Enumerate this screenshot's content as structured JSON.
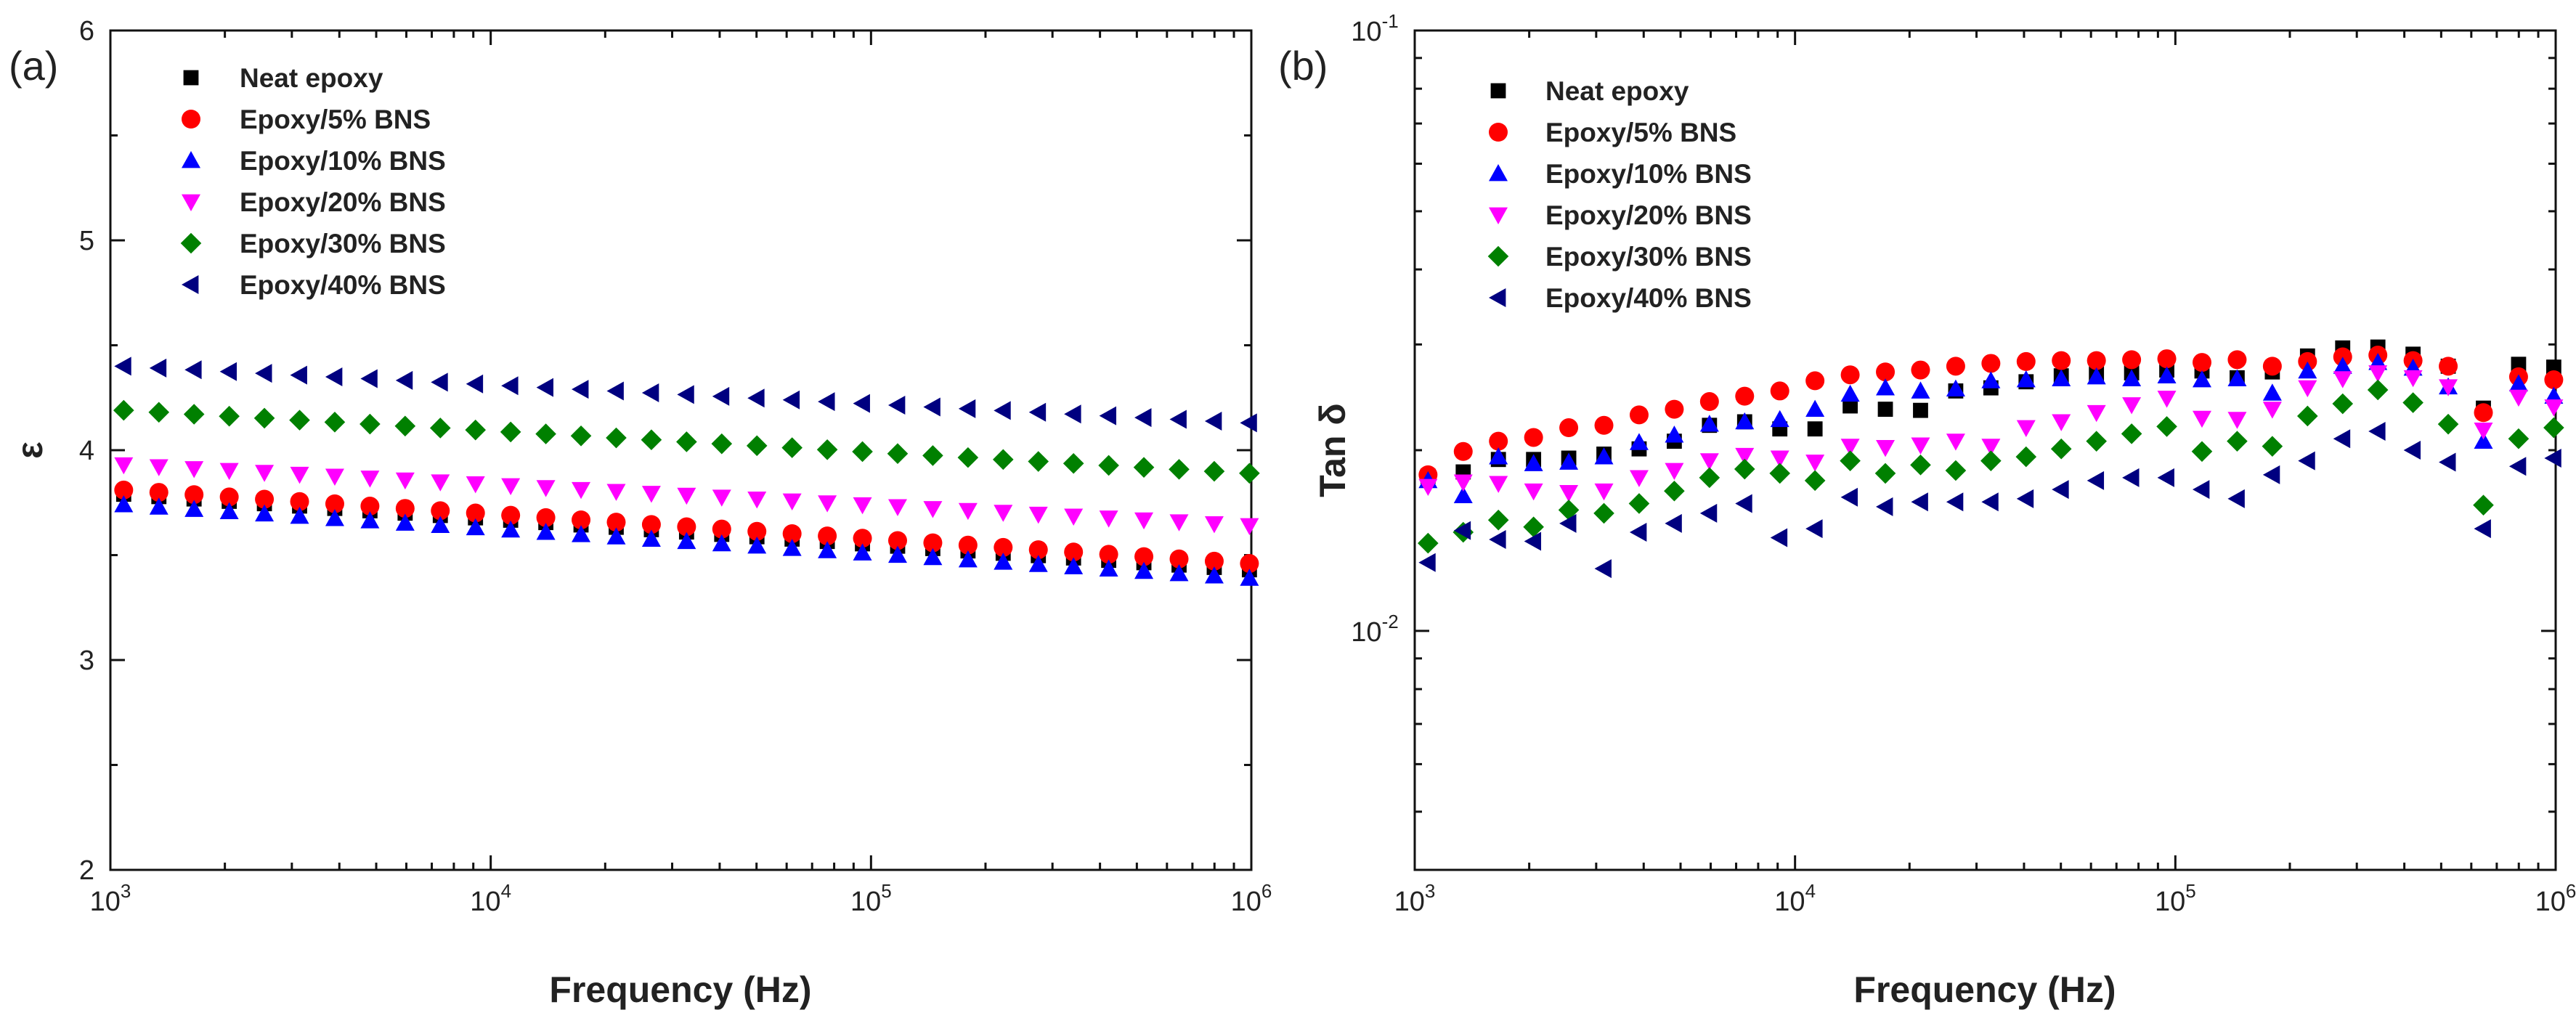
{
  "chart_data": [
    {
      "type": "scatter",
      "panel_label": "(a)",
      "xlabel": "Frequency (Hz)",
      "ylabel": "ε",
      "xscale": "log",
      "xlim": [
        1000,
        1000000
      ],
      "ylim": [
        2,
        6
      ],
      "yscale": "linear",
      "x_ticks": [
        {
          "base": "10",
          "exp": "3",
          "value": 1000
        },
        {
          "base": "10",
          "exp": "4",
          "value": 10000
        },
        {
          "base": "10",
          "exp": "5",
          "value": 100000
        },
        {
          "base": "10",
          "exp": "6",
          "value": 1000000
        }
      ],
      "y_ticks": [
        {
          "label": "2",
          "value": 2
        },
        {
          "label": "3",
          "value": 3
        },
        {
          "label": "4",
          "value": 4
        },
        {
          "label": "5",
          "value": 5
        },
        {
          "label": "6",
          "value": 6
        }
      ],
      "legend_position": "top-left",
      "grid": false,
      "series": [
        {
          "name": "Neat epoxy",
          "marker": "square",
          "color": "#000000",
          "start": 3.79,
          "end": 3.43,
          "outliers": []
        },
        {
          "name": "Epoxy/5% BNS",
          "marker": "circle",
          "color": "#ff0000",
          "start": 3.81,
          "end": 3.46,
          "outliers": []
        },
        {
          "name": "Epoxy/10% BNS",
          "marker": "triangle-up",
          "color": "#0000ff",
          "start": 3.74,
          "end": 3.39,
          "outliers": []
        },
        {
          "name": "Epoxy/20% BNS",
          "marker": "triangle-down",
          "color": "#ff00ff",
          "start": 3.93,
          "end": 3.64,
          "outliers": []
        },
        {
          "name": "Epoxy/30% BNS",
          "marker": "diamond",
          "color": "#008000",
          "start": 4.19,
          "end": 3.89,
          "outliers": []
        },
        {
          "name": "Epoxy/40% BNS",
          "marker": "triangle-left",
          "color": "#000080",
          "start": 4.4,
          "end": 4.13,
          "outliers": []
        }
      ]
    },
    {
      "type": "scatter",
      "panel_label": "(b)",
      "xlabel": "Frequency (Hz)",
      "ylabel": "Tan δ",
      "xscale": "log",
      "xlim": [
        1000,
        1000000
      ],
      "ylim": [
        0.004,
        0.1
      ],
      "yscale": "log",
      "x_ticks": [
        {
          "base": "10",
          "exp": "3",
          "value": 1000
        },
        {
          "base": "10",
          "exp": "4",
          "value": 10000
        },
        {
          "base": "10",
          "exp": "5",
          "value": 100000
        },
        {
          "base": "10",
          "exp": "6",
          "value": 1000000
        }
      ],
      "y_ticks": [
        {
          "base": "10",
          "exp": "-2",
          "value": 0.01
        },
        {
          "base": "10",
          "exp": "-1",
          "value": 0.1
        }
      ],
      "legend_position": "top-left",
      "grid": false,
      "series": [
        {
          "name": "Neat epoxy",
          "marker": "square",
          "color": "#000000",
          "values": [
            0.0181,
            0.0184,
            0.0193,
            0.0193,
            0.0194,
            0.0197,
            0.0201,
            0.0207,
            0.022,
            0.0223,
            0.0217,
            0.0217,
            0.0237,
            0.0234,
            0.0233,
            0.0251,
            0.0254,
            0.026,
            0.0266,
            0.0268,
            0.0269,
            0.0272,
            0.0271,
            0.0264,
            0.027,
            0.0287,
            0.0296,
            0.0297,
            0.0289,
            0.0276,
            0.0235,
            0.0278,
            0.0275
          ]
        },
        {
          "name": "Epoxy/5% BNS",
          "marker": "circle",
          "color": "#ff0000",
          "values": [
            0.0182,
            0.0199,
            0.0207,
            0.021,
            0.0218,
            0.022,
            0.0229,
            0.0234,
            0.0241,
            0.0246,
            0.0251,
            0.0261,
            0.0267,
            0.027,
            0.0272,
            0.0276,
            0.0279,
            0.0281,
            0.0282,
            0.0282,
            0.0283,
            0.0284,
            0.028,
            0.0283,
            0.0276,
            0.0281,
            0.0286,
            0.0288,
            0.0282,
            0.0276,
            0.0231,
            0.0265,
            0.0262
          ]
        },
        {
          "name": "Epoxy/10% BNS",
          "marker": "triangle-up",
          "color": "#0000ff",
          "values": [
            0.0178,
            0.0168,
            0.0195,
            0.019,
            0.0191,
            0.0195,
            0.0206,
            0.0212,
            0.0221,
            0.0223,
            0.0225,
            0.0234,
            0.0248,
            0.0254,
            0.0251,
            0.0253,
            0.0261,
            0.0262,
            0.0263,
            0.0265,
            0.0263,
            0.0266,
            0.0262,
            0.0263,
            0.0249,
            0.0271,
            0.0276,
            0.028,
            0.0274,
            0.0255,
            0.0207,
            0.0258,
            0.0246
          ]
        },
        {
          "name": "Epoxy/20% BNS",
          "marker": "triangle-down",
          "color": "#ff00ff",
          "values": [
            0.0174,
            0.0177,
            0.0176,
            0.0171,
            0.017,
            0.0171,
            0.018,
            0.0185,
            0.0192,
            0.0196,
            0.0194,
            0.0191,
            0.0203,
            0.0202,
            0.0204,
            0.0207,
            0.0203,
            0.0218,
            0.0223,
            0.0231,
            0.0238,
            0.0244,
            0.0226,
            0.0225,
            0.0234,
            0.0254,
            0.0263,
            0.0269,
            0.0264,
            0.0255,
            0.0216,
            0.0245,
            0.0236
          ]
        },
        {
          "name": "Epoxy/30% BNS",
          "marker": "diamond",
          "color": "#008000",
          "values": [
            0.014,
            0.0146,
            0.0153,
            0.0149,
            0.0159,
            0.0157,
            0.0163,
            0.0171,
            0.018,
            0.0186,
            0.0183,
            0.0178,
            0.0192,
            0.0183,
            0.0189,
            0.0185,
            0.0192,
            0.0195,
            0.0201,
            0.0207,
            0.0213,
            0.0219,
            0.0199,
            0.0207,
            0.0203,
            0.0228,
            0.0239,
            0.0252,
            0.024,
            0.0221,
            0.0162,
            0.0209,
            0.0218
          ]
        },
        {
          "name": "Epoxy/40% BNS",
          "marker": "triangle-left",
          "color": "#000080",
          "values": [
            0.013,
            0.0147,
            0.0142,
            0.0141,
            0.0151,
            0.0127,
            0.0146,
            0.0151,
            0.0157,
            0.0163,
            0.0143,
            0.0148,
            0.0167,
            0.0161,
            0.0164,
            0.0164,
            0.0164,
            0.0166,
            0.0172,
            0.0178,
            0.018,
            0.018,
            0.0172,
            0.0166,
            0.0182,
            0.0192,
            0.0209,
            0.0215,
            0.02,
            0.0191,
            0.0148,
            0.0188,
            0.0194
          ]
        }
      ]
    }
  ]
}
